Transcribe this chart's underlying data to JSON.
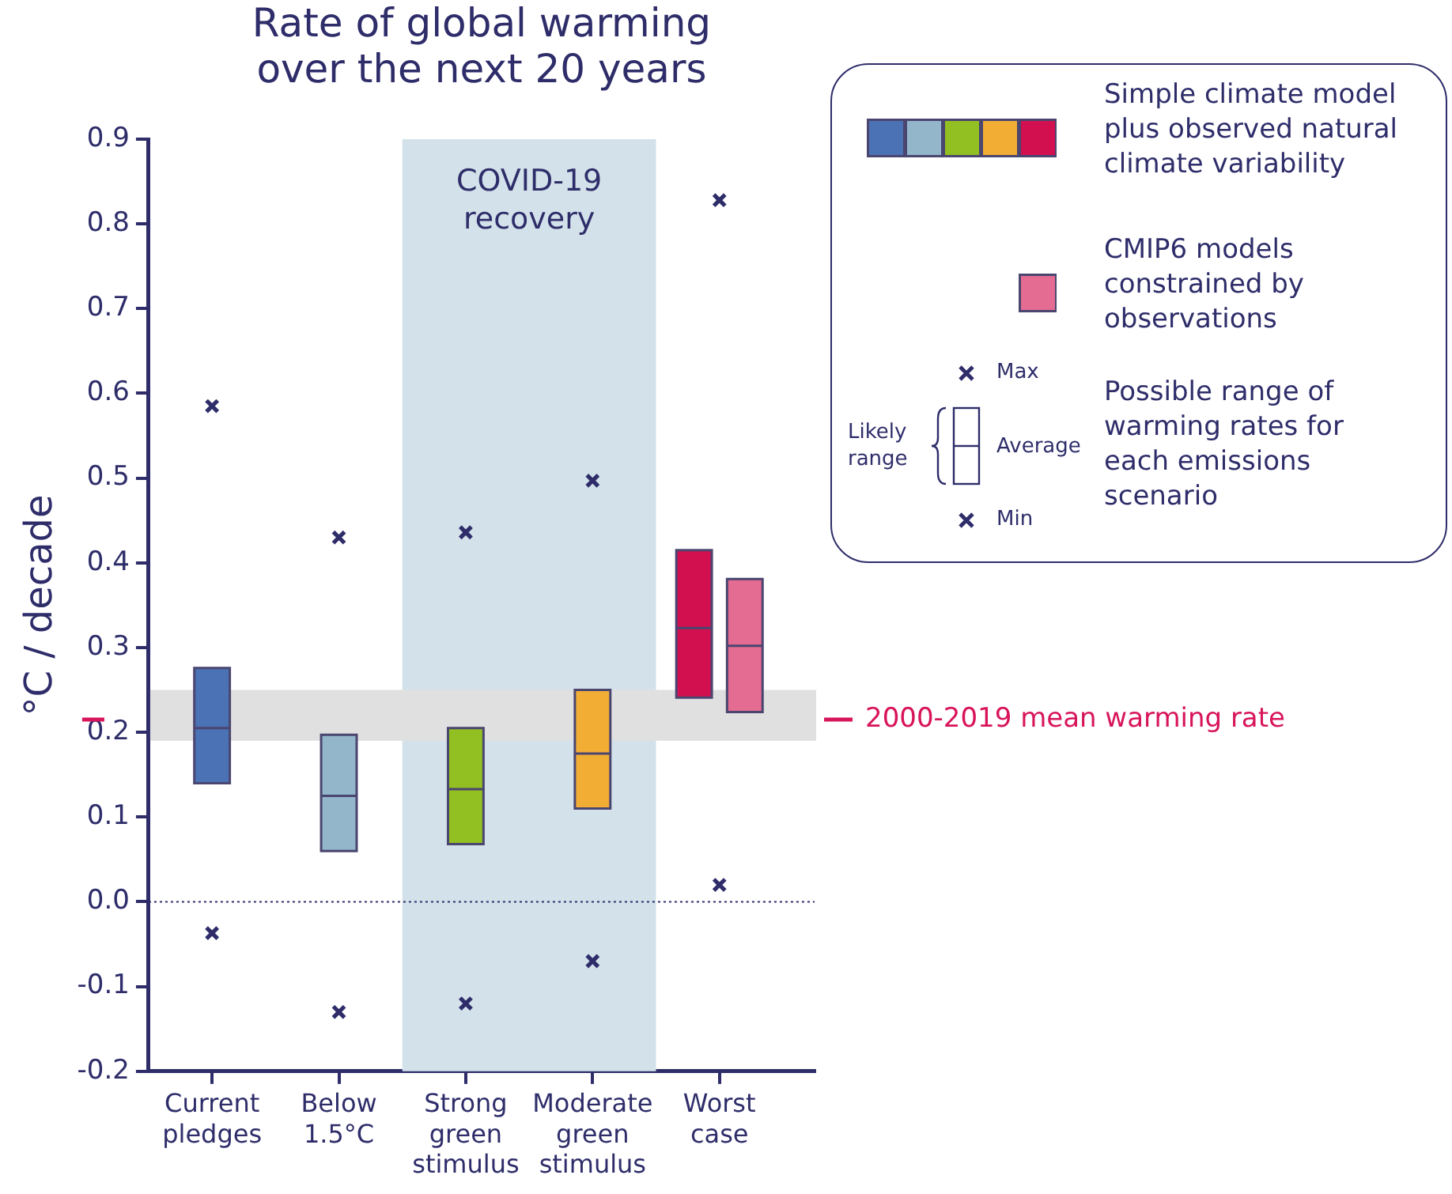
{
  "chart_data": {
    "type": "box",
    "title": "Rate of global warming over the next 20 years",
    "ylabel": "°C / decade",
    "categories": [
      "Current pledges",
      "Below 1.5°C",
      "Strong green stimulus",
      "Moderate green stimulus",
      "Worst case"
    ],
    "series": [
      {
        "name": "Simple climate model plus observed natural climate variability",
        "colors": [
          "#4a72b4",
          "#93b6cb",
          "#92bf22",
          "#f2ad35",
          "#d2104f"
        ],
        "boxes": [
          {
            "q1": 0.14,
            "median": 0.205,
            "q3": 0.276
          },
          {
            "q1": 0.06,
            "median": 0.125,
            "q3": 0.197
          },
          {
            "q1": 0.068,
            "median": 0.133,
            "q3": 0.205
          },
          {
            "q1": 0.11,
            "median": 0.175,
            "q3": 0.25
          },
          {
            "q1": 0.241,
            "median": 0.323,
            "q3": 0.415
          }
        ]
      },
      {
        "name": "CMIP6 models constrained by observations",
        "color": "#e46b91",
        "boxes": [
          null,
          null,
          null,
          null,
          {
            "q1": 0.224,
            "median": 0.302,
            "q3": 0.381
          }
        ]
      },
      {
        "name": "Max",
        "type": "scatter",
        "marker": "cross",
        "color": "#2e2d6a",
        "x": [
          "Current pledges",
          "Below 1.5°C",
          "Strong green stimulus",
          "Moderate green stimulus",
          "Worst case"
        ],
        "values": [
          0.585,
          0.43,
          0.436,
          0.497,
          0.828
        ]
      },
      {
        "name": "Min",
        "type": "scatter",
        "marker": "cross",
        "color": "#2e2d6a",
        "x": [
          "Current pledges",
          "Below 1.5°C",
          "Strong green stimulus",
          "Moderate green stimulus",
          "Worst case"
        ],
        "values": [
          -0.037,
          -0.13,
          -0.12,
          -0.07,
          0.02
        ]
      }
    ],
    "ylim": [
      -0.2,
      0.9
    ],
    "yticks": [
      -0.2,
      -0.1,
      {
        "value": 0,
        "label": "0.0"
      },
      0.1,
      0.2,
      0.3,
      0.4,
      0.5,
      0.6,
      0.7,
      0.8,
      0.9
    ],
    "ref_lines": [
      {
        "axis": "y",
        "value": 0,
        "color": "#2e2d6a",
        "line_style": "dotted"
      },
      {
        "axis": "y",
        "value": 0.215,
        "label": "2000-2019 mean warming rate",
        "color": "#d8145a"
      }
    ],
    "bands": [
      {
        "axis": "x",
        "from": "Strong green stimulus",
        "to": "Moderate green stimulus",
        "label": "COVID-19 recovery",
        "color": "#d3e2ea"
      },
      {
        "axis": "y",
        "from": 0.19,
        "to": 0.25,
        "color": "#e0e0e0"
      }
    ],
    "annotations": [
      "Likely range",
      "Average",
      "Possible range of warming rates for each emissions scenario"
    ],
    "legend": "top right",
    "grid": false
  }
}
